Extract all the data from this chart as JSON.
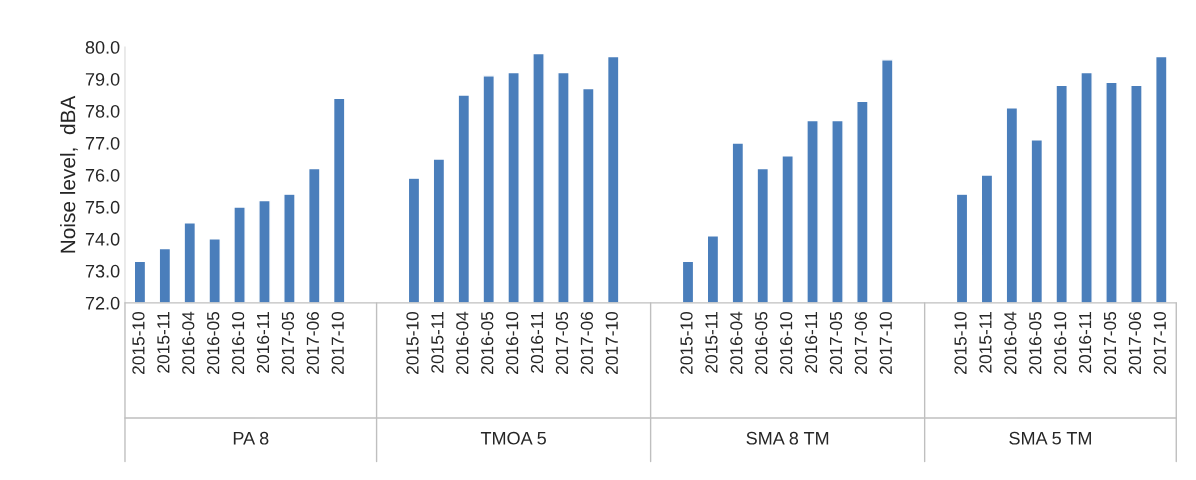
{
  "chart_data": {
    "type": "bar",
    "ylabel": "Noise level,  dBA",
    "categories": [
      "2015-10",
      "2015-11",
      "2016-04",
      "2016-05",
      "2016-10",
      "2016-11",
      "2017-05",
      "2017-06",
      "2017-10",
      null,
      null,
      "2015-10",
      "2015-11",
      "2016-04",
      "2016-05",
      "2016-10",
      "2016-11",
      "2017-05",
      "2017-06",
      "2017-10",
      null,
      null,
      "2015-10",
      "2015-11",
      "2016-04",
      "2016-05",
      "2016-10",
      "2016-11",
      "2017-05",
      "2017-06",
      "2017-10",
      null,
      null,
      "2015-10",
      "2015-11",
      "2016-04",
      "2016-05",
      "2016-10",
      "2016-11",
      "2017-05",
      "2017-06",
      "2017-10"
    ],
    "values": [
      73.3,
      73.7,
      74.5,
      74.0,
      75.0,
      75.2,
      75.4,
      76.2,
      78.4,
      null,
      null,
      75.9,
      76.5,
      78.5,
      79.1,
      79.2,
      79.8,
      79.2,
      78.7,
      79.7,
      null,
      null,
      73.3,
      74.1,
      77.0,
      76.2,
      76.6,
      77.7,
      77.7,
      78.3,
      79.6,
      null,
      null,
      75.4,
      76.0,
      78.1,
      77.1,
      78.8,
      79.2,
      78.9,
      78.8,
      79.7
    ],
    "color": "#4a7ebb",
    "annotations": [
      "PA 8",
      "TMOA 5",
      "SMA 8 TM",
      "SMA 5 TM"
    ],
    "ylim": [
      72.0,
      80.0
    ],
    "yticks": [
      {
        "value": 72,
        "label": "72.0"
      },
      {
        "value": 73,
        "label": "73.0"
      },
      {
        "value": 74,
        "label": "74.0"
      },
      {
        "value": 75,
        "label": "75.0"
      },
      {
        "value": 76,
        "label": "76.0"
      },
      {
        "value": 77,
        "label": "77.0"
      },
      {
        "value": 78,
        "label": "78.0"
      },
      {
        "value": 79,
        "label": "79.0"
      },
      {
        "value": 80,
        "label": "80.0"
      }
    ],
    "grid": false,
    "legend": false
  }
}
